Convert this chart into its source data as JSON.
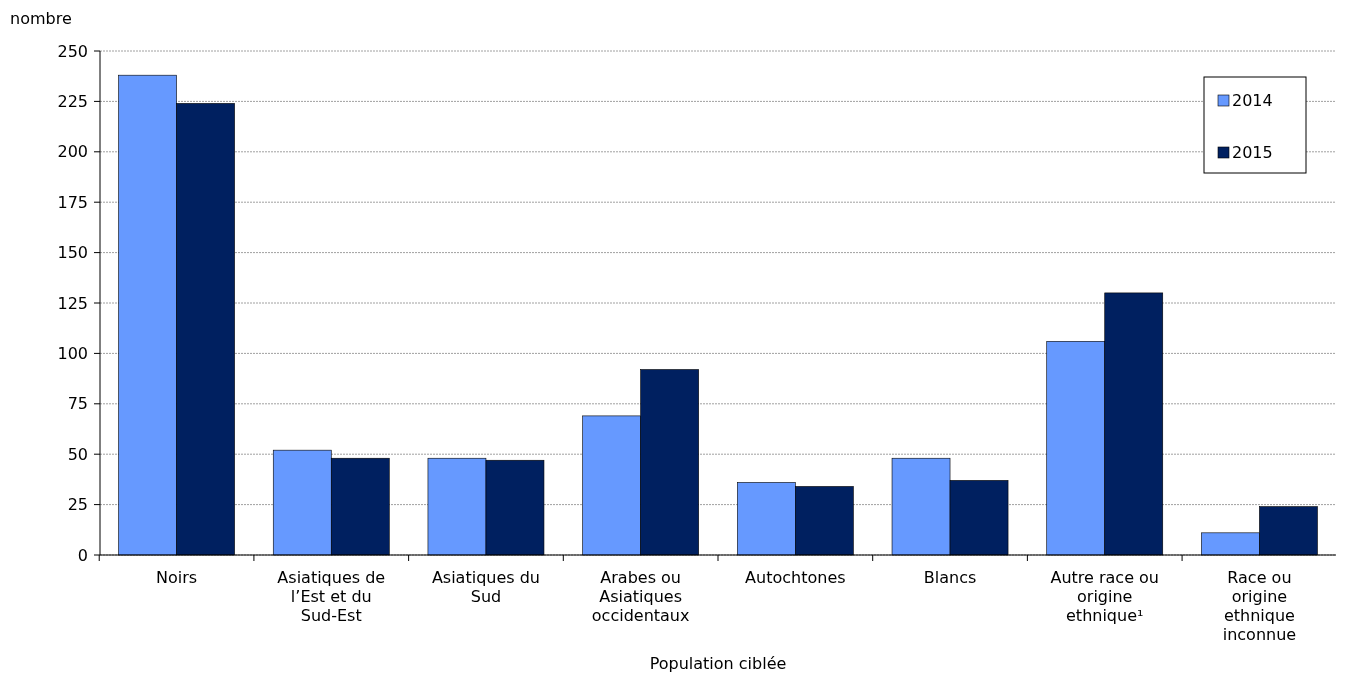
{
  "chart_data": {
    "type": "bar",
    "ylabel": "nombre",
    "xlabel": "Population ciblée",
    "categories": [
      "Noirs",
      "Asiatiques de l’Est et du Sud-Est",
      "Asiatiques du Sud",
      "Arabes ou Asiatiques occidentaux",
      "Autochtones",
      "Blancs",
      "Autre race ou origine ethnique¹",
      "Race ou origine ethnique inconnue"
    ],
    "series": [
      {
        "name": "2014",
        "color": "#6699ff",
        "values": [
          238,
          52,
          48,
          69,
          36,
          48,
          106,
          11
        ]
      },
      {
        "name": "2015",
        "color": "#002060",
        "values": [
          224,
          48,
          47,
          92,
          34,
          37,
          130,
          24
        ]
      }
    ],
    "ylim": [
      0,
      250
    ],
    "yticks": [
      0,
      25,
      50,
      75,
      100,
      125,
      150,
      175,
      200,
      225,
      250
    ],
    "grid": "y",
    "legend": "top right"
  }
}
